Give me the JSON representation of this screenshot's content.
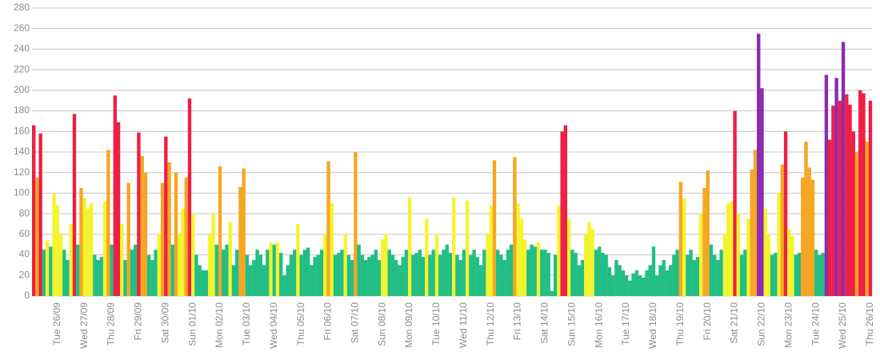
{
  "chart_data": {
    "type": "bar",
    "categories": [
      null,
      null,
      null,
      null,
      null,
      null,
      null,
      "Tue 26/09",
      null,
      null,
      null,
      null,
      null,
      null,
      null,
      "Wed 27/09",
      null,
      null,
      null,
      null,
      null,
      null,
      null,
      "Thu 28/09",
      null,
      null,
      null,
      null,
      null,
      null,
      null,
      "Fri 29/09",
      null,
      null,
      null,
      null,
      null,
      null,
      null,
      "Sat 30/09",
      null,
      null,
      null,
      null,
      null,
      null,
      null,
      "Sun 01/10",
      null,
      null,
      null,
      null,
      null,
      null,
      null,
      "Mon 02/10",
      null,
      null,
      null,
      null,
      null,
      null,
      null,
      "Tue 03/10",
      null,
      null,
      null,
      null,
      null,
      null,
      null,
      "Wed 04/10",
      null,
      null,
      null,
      null,
      null,
      null,
      null,
      "Thu 05/10",
      null,
      null,
      null,
      null,
      null,
      null,
      null,
      "Fri 06/10",
      null,
      null,
      null,
      null,
      null,
      null,
      null,
      "Sat 07/10",
      null,
      null,
      null,
      null,
      null,
      null,
      null,
      "Sun 08/10",
      null,
      null,
      null,
      null,
      null,
      null,
      null,
      "Mon 09/10",
      null,
      null,
      null,
      null,
      null,
      null,
      null,
      "Tue 10/10",
      null,
      null,
      null,
      null,
      null,
      null,
      null,
      "Wed 11/10",
      null,
      null,
      null,
      null,
      null,
      null,
      null,
      "Thu 12/10",
      null,
      null,
      null,
      null,
      null,
      null,
      null,
      "Fri 13/10",
      null,
      null,
      null,
      null,
      null,
      null,
      null,
      "Sat 14/10",
      null,
      null,
      null,
      null,
      null,
      null,
      null,
      "Sun 15/10",
      null,
      null,
      null,
      null,
      null,
      null,
      null,
      "Mon 16/10",
      null,
      null,
      null,
      null,
      null,
      null,
      null,
      "Tue 17/10",
      null,
      null,
      null,
      null,
      null,
      null,
      null,
      "Wed 18/10",
      null,
      null,
      null,
      null,
      null,
      null,
      null,
      "Thu 19/10",
      null,
      null,
      null,
      null,
      null,
      null,
      null,
      "Fri 20/10",
      null,
      null,
      null,
      null,
      null,
      null,
      null,
      "Sat 21/10",
      null,
      null,
      null,
      null,
      null,
      null,
      null,
      "Sun 22/10",
      null,
      null,
      null,
      null,
      null,
      null,
      null,
      "Mon 23/10",
      null,
      null,
      null,
      null,
      null,
      null,
      null,
      "Tue 24/10",
      null,
      null,
      null,
      null,
      null,
      null,
      null,
      "Wed 25/10",
      null,
      null,
      null,
      null,
      null,
      null,
      null,
      "Thu 26/10"
    ],
    "values": [
      166,
      115,
      158,
      45,
      54,
      48,
      100,
      88,
      60,
      45,
      35,
      70,
      177,
      50,
      105,
      95,
      85,
      90,
      40,
      35,
      38,
      92,
      142,
      50,
      195,
      169,
      70,
      35,
      110,
      45,
      50,
      159,
      136,
      120,
      40,
      35,
      45,
      60,
      110,
      155,
      130,
      50,
      120,
      60,
      85,
      115,
      192,
      80,
      40,
      30,
      25,
      25,
      60,
      80,
      50,
      126,
      45,
      50,
      72,
      30,
      45,
      106,
      124,
      40,
      30,
      35,
      45,
      40,
      30,
      45,
      52,
      50,
      52,
      42,
      20,
      30,
      40,
      45,
      70,
      40,
      45,
      47,
      30,
      38,
      40,
      45,
      60,
      131,
      90,
      40,
      42,
      45,
      60,
      40,
      35,
      140,
      50,
      40,
      35,
      38,
      40,
      45,
      35,
      55,
      60,
      45,
      40,
      35,
      30,
      38,
      45,
      96,
      40,
      42,
      45,
      38,
      75,
      40,
      45,
      60,
      40,
      45,
      50,
      42,
      96,
      40,
      35,
      45,
      93,
      40,
      45,
      38,
      30,
      45,
      60,
      88,
      132,
      45,
      40,
      35,
      45,
      50,
      135,
      90,
      75,
      55,
      45,
      50,
      48,
      52,
      45,
      45,
      42,
      5,
      40,
      88,
      160,
      166,
      75,
      45,
      42,
      30,
      35,
      60,
      72,
      65,
      45,
      48,
      42,
      40,
      28,
      20,
      35,
      30,
      25,
      20,
      15,
      22,
      25,
      20,
      18,
      25,
      30,
      48,
      20,
      30,
      35,
      25,
      30,
      40,
      45,
      111,
      95,
      40,
      45,
      35,
      38,
      80,
      105,
      122,
      50,
      40,
      35,
      45,
      60,
      90,
      92,
      180,
      80,
      40,
      45,
      75,
      123,
      142,
      255,
      202,
      85,
      60,
      40,
      42,
      100,
      128,
      160,
      65,
      58,
      40,
      42,
      115,
      150,
      125,
      113,
      45,
      40,
      42,
      215,
      152,
      185,
      212,
      190,
      247,
      196,
      186,
      160,
      140,
      200,
      197,
      150,
      190
    ],
    "color_bands": [
      {
        "max": 50,
        "color": "#22be84"
      },
      {
        "max": 100,
        "color": "#f4f42e"
      },
      {
        "max": 150,
        "color": "#f5a623"
      },
      {
        "max": 200,
        "color": "#ee1f45"
      },
      {
        "max": 280,
        "color": "#8a2bb0"
      }
    ],
    "ylim": [
      0,
      280
    ],
    "yticks": [
      0,
      20,
      40,
      60,
      80,
      100,
      120,
      140,
      160,
      180,
      200,
      220,
      240,
      260,
      280
    ],
    "grid": true
  }
}
